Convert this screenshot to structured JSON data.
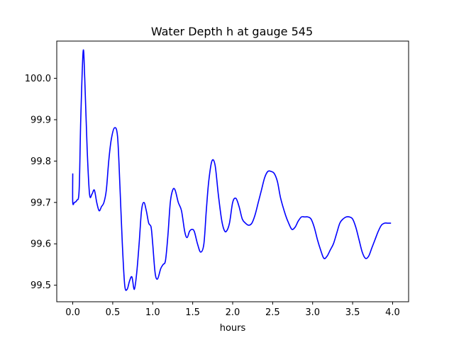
{
  "chart_data": {
    "type": "line",
    "title": "Water Depth h at gauge 545",
    "xlabel": "hours",
    "ylabel": "",
    "xlim": [
      -0.2,
      4.2
    ],
    "ylim": [
      99.46,
      100.09
    ],
    "xticks": [
      0.0,
      0.5,
      1.0,
      1.5,
      2.0,
      2.5,
      3.0,
      3.5,
      4.0
    ],
    "xtick_labels": [
      "0.0",
      "0.5",
      "1.0",
      "1.5",
      "2.0",
      "2.5",
      "3.0",
      "3.5",
      "4.0"
    ],
    "yticks": [
      99.5,
      99.6,
      99.7,
      99.8,
      99.9,
      100.0
    ],
    "ytick_labels": [
      "99.5",
      "99.6",
      "99.7",
      "99.8",
      "99.9",
      "100.0"
    ],
    "grid": false,
    "legend": "none",
    "series": [
      {
        "color": "#0000ff",
        "x": [
          0.0,
          0.0,
          0.02,
          0.05,
          0.08,
          0.1,
          0.13,
          0.15,
          0.18,
          0.21,
          0.24,
          0.27,
          0.3,
          0.33,
          0.36,
          0.39,
          0.42,
          0.45,
          0.48,
          0.52,
          0.56,
          0.59,
          0.62,
          0.65,
          0.68,
          0.71,
          0.74,
          0.77,
          0.8,
          0.83,
          0.86,
          0.89,
          0.92,
          0.95,
          0.98,
          1.0,
          1.03,
          1.06,
          1.1,
          1.13,
          1.16,
          1.19,
          1.22,
          1.25,
          1.28,
          1.32,
          1.36,
          1.4,
          1.43,
          1.46,
          1.49,
          1.52,
          1.56,
          1.6,
          1.64,
          1.67,
          1.7,
          1.74,
          1.78,
          1.82,
          1.86,
          1.89,
          1.92,
          1.96,
          2.0,
          2.04,
          2.08,
          2.12,
          2.16,
          2.2,
          2.24,
          2.28,
          2.32,
          2.36,
          2.4,
          2.44,
          2.48,
          2.52,
          2.56,
          2.6,
          2.66,
          2.7,
          2.74,
          2.78,
          2.82,
          2.86,
          2.9,
          2.94,
          2.98,
          3.02,
          3.06,
          3.1,
          3.14,
          3.18,
          3.22,
          3.26,
          3.3,
          3.34,
          3.38,
          3.42,
          3.46,
          3.5,
          3.54,
          3.58,
          3.62,
          3.66,
          3.7,
          3.74,
          3.78,
          3.82,
          3.86,
          3.9,
          3.94,
          3.98
        ],
        "y": [
          99.77,
          99.7,
          99.7,
          99.705,
          99.73,
          99.9,
          100.065,
          100.0,
          99.83,
          99.72,
          99.72,
          99.73,
          99.7,
          99.68,
          99.69,
          99.7,
          99.73,
          99.8,
          99.85,
          99.88,
          99.86,
          99.74,
          99.6,
          99.5,
          99.49,
          99.51,
          99.52,
          99.49,
          99.53,
          99.6,
          99.68,
          99.7,
          99.68,
          99.65,
          99.64,
          99.6,
          99.53,
          99.515,
          99.54,
          99.55,
          99.56,
          99.62,
          99.7,
          99.73,
          99.73,
          99.7,
          99.68,
          99.63,
          99.615,
          99.63,
          99.635,
          99.63,
          99.6,
          99.58,
          99.6,
          99.68,
          99.75,
          99.8,
          99.79,
          99.72,
          99.66,
          99.635,
          99.63,
          99.65,
          99.7,
          99.71,
          99.69,
          99.66,
          99.65,
          99.645,
          99.65,
          99.67,
          99.7,
          99.73,
          99.76,
          99.775,
          99.775,
          99.77,
          99.75,
          99.71,
          99.67,
          99.65,
          99.635,
          99.64,
          99.655,
          99.665,
          99.665,
          99.665,
          99.66,
          99.64,
          99.61,
          99.585,
          99.565,
          99.57,
          99.585,
          99.6,
          99.625,
          99.65,
          99.66,
          99.665,
          99.665,
          99.66,
          99.64,
          99.61,
          99.58,
          99.565,
          99.57,
          99.59,
          99.61,
          99.63,
          99.645,
          99.65,
          99.65,
          99.65
        ]
      }
    ]
  }
}
